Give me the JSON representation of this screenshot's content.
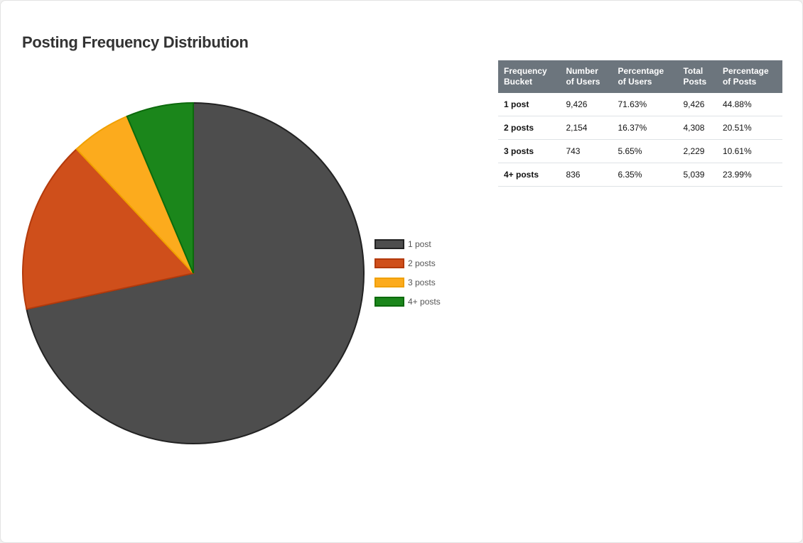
{
  "title": "Posting Frequency Distribution",
  "chart_data": {
    "type": "pie",
    "categories": [
      "1 post",
      "2 posts",
      "3 posts",
      "4+ posts"
    ],
    "values": [
      9426,
      2154,
      743,
      836
    ],
    "colors": [
      "#4d4d4d",
      "#cf4f1b",
      "#fcab1d",
      "#1b861b"
    ],
    "border_colors": [
      "#222222",
      "#b33a0c",
      "#f0a000",
      "#0c6a0c"
    ],
    "legend": "right"
  },
  "table": {
    "headers": [
      [
        "Frequency",
        "Bucket"
      ],
      [
        "Number",
        "of Users"
      ],
      [
        "Percentage",
        "of Users"
      ],
      [
        "Total",
        "Posts"
      ],
      [
        "Percentage",
        "of Posts"
      ]
    ],
    "rows": [
      [
        "1 post",
        "9,426",
        "71.63%",
        "9,426",
        "44.88%"
      ],
      [
        "2 posts",
        "2,154",
        "16.37%",
        "4,308",
        "20.51%"
      ],
      [
        "3 posts",
        "743",
        "5.65%",
        "2,229",
        "10.61%"
      ],
      [
        "4+ posts",
        "836",
        "6.35%",
        "5,039",
        "23.99%"
      ]
    ]
  }
}
